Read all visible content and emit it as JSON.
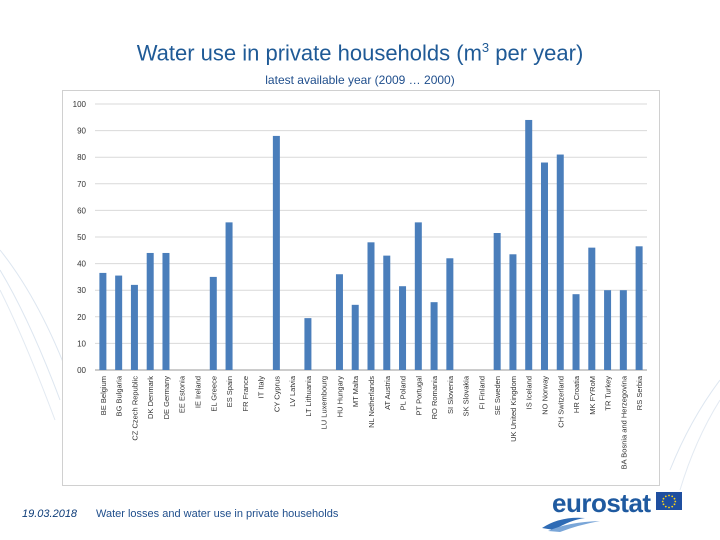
{
  "slide": {
    "title_main": "Water use in private households (m",
    "title_sup": "3",
    "title_end": " per year)",
    "subtitle": "latest available year (2009 … 2000)",
    "footer_date": "19.03.2018",
    "footer_text": "Water losses and water use in private households",
    "logo_text": "eurostat",
    "brand_color": "#1f5aa0"
  },
  "chart_data": {
    "type": "bar",
    "ylim": [
      0,
      100
    ],
    "yticks": [
      "00",
      "10",
      "20",
      "30",
      "40",
      "50",
      "60",
      "70",
      "80",
      "90",
      "100"
    ],
    "bar_color": "#4a7ebb",
    "grid": true,
    "categories": [
      "BE Belgium",
      "BG Bulgaria",
      "CZ Czech Republic",
      "DK Denmark",
      "DE Germany",
      "EE Estonia",
      "IE Ireland",
      "EL Greece",
      "ES Spain",
      "FR France",
      "IT Italy",
      "CY Cyprus",
      "LV Latvia",
      "LT Lithuania",
      "LU Luxembourg",
      "HU Hungary",
      "MT Malta",
      "NL Netherlands",
      "AT Austria",
      "PL Poland",
      "PT Portugal",
      "RO Romania",
      "SI Slovenia",
      "SK Slovakia",
      "FI Finland",
      "SE Sweden",
      "UK United Kingdom",
      "IS Iceland",
      "NO Norway",
      "CH Switzerland",
      "HR Croatia",
      "MK FYRoM",
      "TR Turkey",
      "BA Bosnia and Herzegovina",
      "RS Serbia"
    ],
    "values": [
      36.5,
      35.5,
      32,
      44,
      44,
      null,
      null,
      35,
      55.5,
      null,
      null,
      88,
      null,
      19.5,
      null,
      36,
      24.5,
      48,
      43,
      31.5,
      55.5,
      25.5,
      42,
      null,
      null,
      51.5,
      43.5,
      94,
      78,
      81,
      28.5,
      46,
      30,
      30,
      46.5
    ]
  }
}
